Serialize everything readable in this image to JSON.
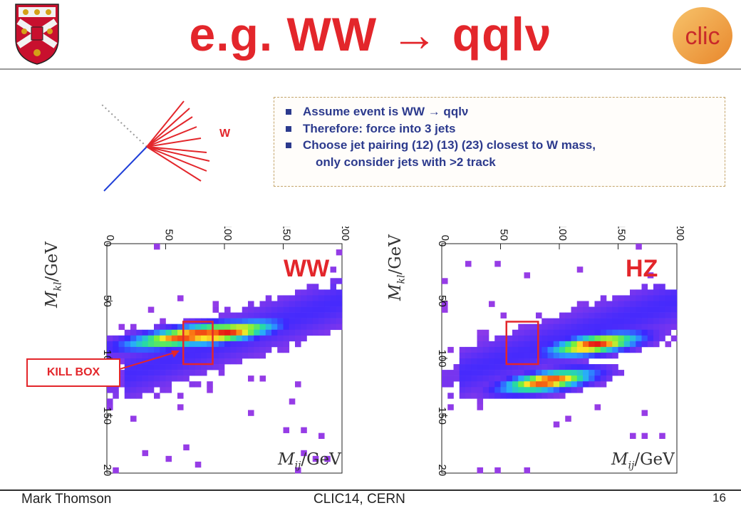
{
  "slide": {
    "title": "e.g. WW → qqlν",
    "colors": {
      "accent_red": "#e3262b",
      "bullet_blue": "#2c3a8d",
      "box_border": "#c4a46a"
    }
  },
  "logos": {
    "left": "university-crest",
    "right_text": "clic",
    "right_text_color": "#c92a2a"
  },
  "event_diagram": {
    "w_label": "W"
  },
  "bullets": [
    "Assume event is WW → qqlν",
    "Therefore: force into 3 jets",
    "Choose jet pairing (12) (13) (23) closest to W mass,"
  ],
  "bullet_continuation": "only consider jets with >2 track",
  "kill_box_label": "KILL BOX",
  "chart_data": [
    {
      "type": "heatmap",
      "title": "",
      "tag": "WW",
      "xlabel_symbol": "M",
      "xlabel_sub": "ij",
      "xlabel_unit": "/GeV",
      "ylabel_symbol": "M",
      "ylabel_sub": "kl",
      "ylabel_unit": "/GeV",
      "x_ticks": [
        "0",
        "50",
        "100",
        "150",
        "200"
      ],
      "y_ticks": [
        "0",
        "50",
        "100",
        "150",
        "200"
      ],
      "xlim": [
        0,
        200
      ],
      "ylim": [
        0,
        200
      ],
      "kill_box": {
        "x": [
          65,
          90
        ],
        "y": [
          68,
          105
        ]
      },
      "hot_regions": [
        {
          "center": [
            72,
            80
          ],
          "spread": [
            40,
            6
          ]
        },
        {
          "center": [
            100,
            78
          ],
          "spread": [
            32,
            6
          ]
        }
      ]
    },
    {
      "type": "heatmap",
      "title": "",
      "tag": "HZ",
      "xlabel_symbol": "M",
      "xlabel_sub": "ij",
      "xlabel_unit": "/GeV",
      "ylabel_symbol": "M",
      "ylabel_sub": "kl",
      "ylabel_unit": "/GeV",
      "x_ticks": [
        "0",
        "50",
        "100",
        "150",
        "200"
      ],
      "y_ticks": [
        "0",
        "50",
        "100",
        "150",
        "200"
      ],
      "xlim": [
        0,
        200
      ],
      "ylim": [
        0,
        200
      ],
      "kill_box": {
        "x": [
          55,
          82
        ],
        "y": [
          68,
          105
        ]
      },
      "hot_regions": [
        {
          "center": [
            130,
            88
          ],
          "spread": [
            28,
            6
          ]
        },
        {
          "center": [
            90,
            120
          ],
          "spread": [
            28,
            6
          ]
        }
      ]
    }
  ],
  "footer": {
    "author": "Mark Thomson",
    "event": "CLIC14, CERN",
    "page": "16"
  }
}
